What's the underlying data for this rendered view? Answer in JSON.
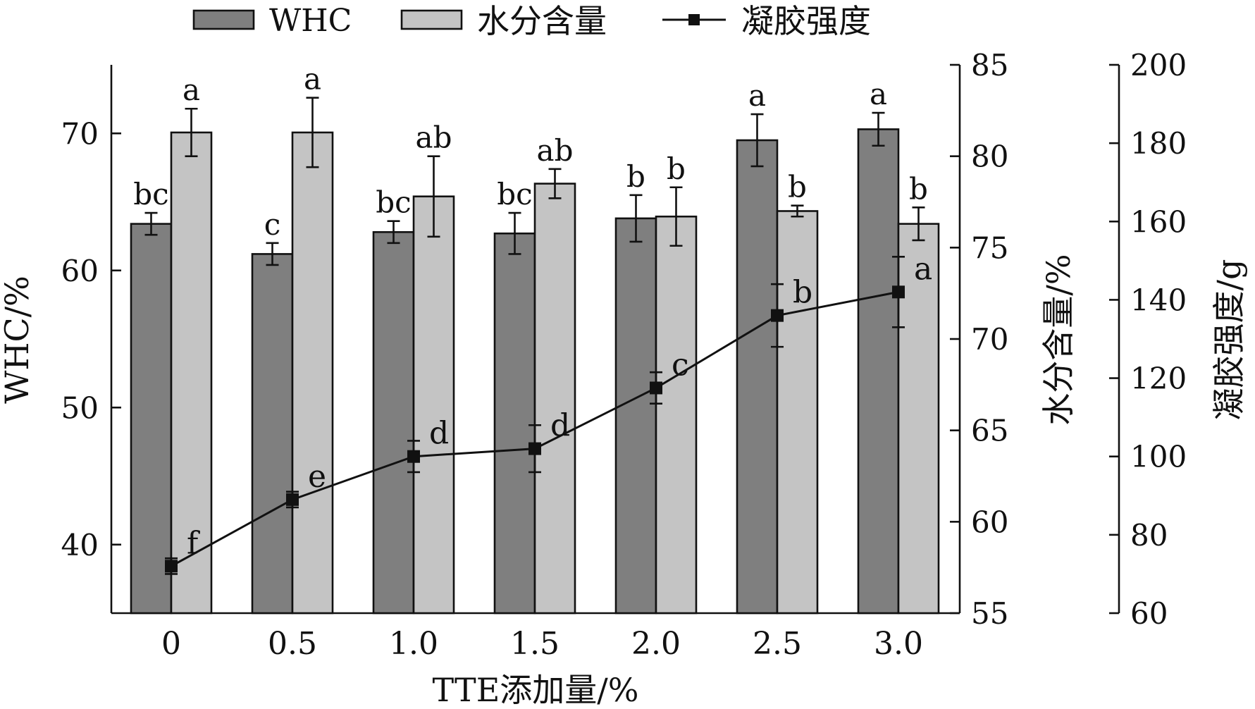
{
  "legend": {
    "whc_label": "WHC",
    "moisture_label": "水分含量",
    "gel_label": "凝胶强度"
  },
  "colors": {
    "whc": "#7f7f7f",
    "moisture": "#c4c4c4",
    "line": "#111111"
  },
  "chart_data": {
    "type": "bar",
    "categories": [
      "0",
      "0.5",
      "1.0",
      "1.5",
      "2.0",
      "2.5",
      "3.0"
    ],
    "xlabel": "TTE添加量/%",
    "series": [
      {
        "name": "WHC",
        "kind": "bar",
        "axis": "left",
        "values": [
          63.4,
          61.2,
          62.8,
          62.7,
          63.8,
          69.5,
          70.3
        ],
        "errors": [
          0.8,
          0.8,
          0.8,
          1.5,
          1.7,
          1.9,
          1.2
        ],
        "letters": [
          "bc",
          "c",
          "bc",
          "bc",
          "b",
          "a",
          "a"
        ]
      },
      {
        "name": "水分含量",
        "kind": "bar",
        "axis": "right1",
        "values": [
          81.3,
          81.3,
          77.8,
          78.5,
          76.7,
          77.0,
          76.3
        ],
        "errors": [
          1.3,
          1.9,
          2.2,
          0.8,
          1.6,
          0.3,
          0.9
        ],
        "letters": [
          "a",
          "a",
          "ab",
          "ab",
          "b",
          "b",
          "b"
        ]
      },
      {
        "name": "凝胶强度",
        "kind": "line",
        "axis": "right2",
        "values": [
          72.0,
          89.0,
          100.0,
          102.0,
          117.5,
          136.0,
          142.0
        ],
        "errors": [
          2.0,
          2.0,
          4.0,
          6.0,
          4.0,
          8.0,
          9.0
        ],
        "letters": [
          "f",
          "e",
          "d",
          "d",
          "c",
          "b",
          "a"
        ]
      }
    ],
    "axes": {
      "left": {
        "label": "WHC/%",
        "ylim": [
          35,
          75
        ],
        "ticks": [
          40,
          50,
          60,
          70
        ]
      },
      "right1": {
        "label": "水分含量/%",
        "ylim": [
          55,
          85
        ],
        "ticks": [
          55,
          60,
          65,
          70,
          75,
          80,
          85
        ]
      },
      "right2": {
        "label": "凝胶强度/g",
        "ylim": [
          60,
          200
        ],
        "ticks": [
          60,
          80,
          100,
          120,
          140,
          160,
          180,
          200
        ]
      }
    },
    "legend_position": "top"
  }
}
